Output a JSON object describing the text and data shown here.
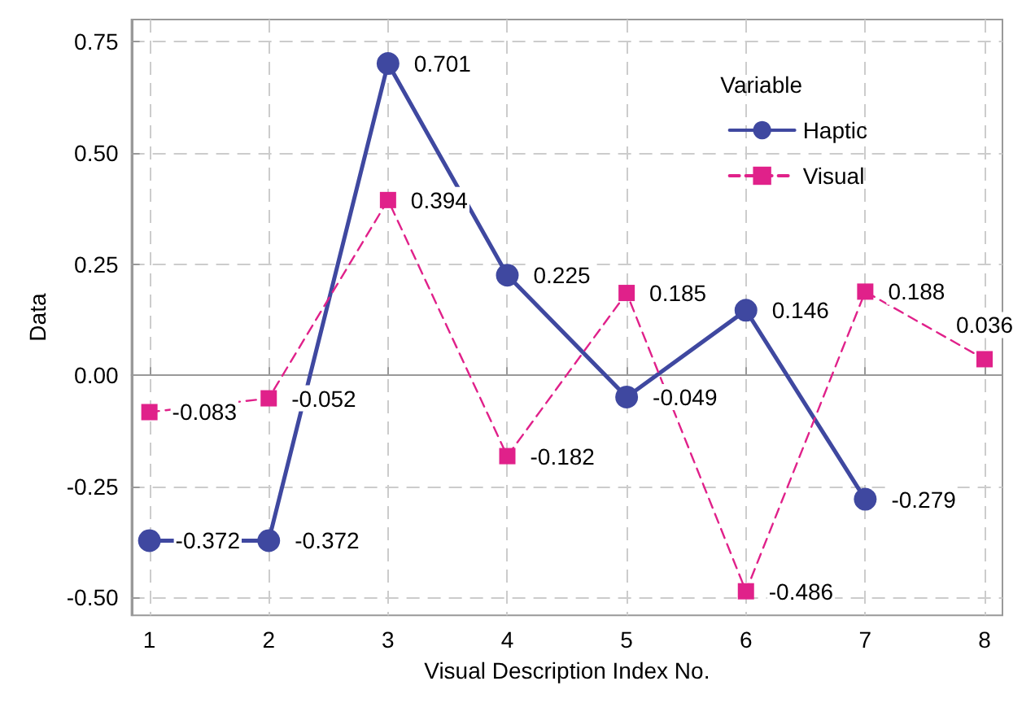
{
  "chart_data": {
    "type": "line",
    "xlabel": "Visual Description Index No.",
    "ylabel": "Data",
    "legend_title": "Variable",
    "x": [
      1,
      2,
      3,
      4,
      5,
      6,
      7,
      8
    ],
    "series": [
      {
        "name": "Haptic",
        "color": "#3f48a0",
        "marker": "circle",
        "line_style": "solid",
        "values": [
          -0.372,
          -0.372,
          0.701,
          0.225,
          -0.049,
          0.146,
          -0.279,
          null
        ]
      },
      {
        "name": "Visual",
        "color": "#e0218a",
        "marker": "square",
        "line_style": "dashed",
        "values": [
          -0.083,
          -0.052,
          0.394,
          -0.182,
          0.185,
          -0.486,
          0.188,
          0.036
        ]
      }
    ],
    "xlim": [
      0.85,
      8.15
    ],
    "xticks": [
      1,
      2,
      3,
      4,
      5,
      6,
      7,
      8
    ],
    "ylim": [
      -0.54,
      0.8
    ],
    "yticks": [
      {
        "value": -0.5,
        "label": "-0.50"
      },
      {
        "value": -0.25,
        "label": "-0.25"
      },
      {
        "value": 0,
        "label": "0.00"
      },
      {
        "value": 0.25,
        "label": "0.25"
      },
      {
        "value": 0.5,
        "label": "0.50"
      },
      {
        "value": 0.75,
        "label": "0.75"
      }
    ],
    "grid": true,
    "legend": "top right",
    "data_labels": true
  }
}
